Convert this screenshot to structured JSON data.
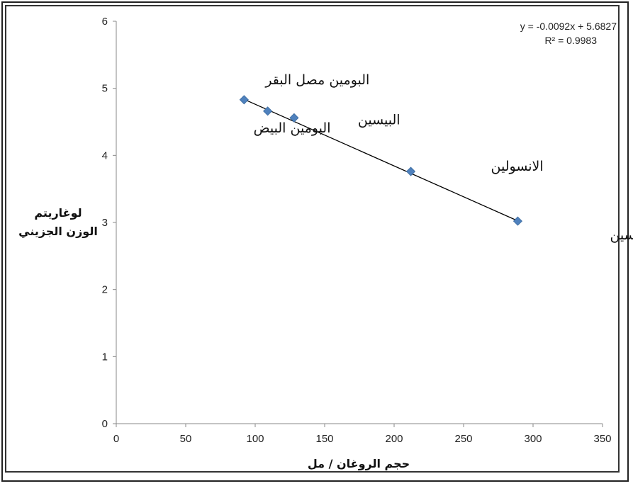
{
  "chart_data": {
    "type": "scatter",
    "xlim": [
      0,
      350
    ],
    "ylim": [
      0,
      6
    ],
    "x_ticks": [
      0,
      50,
      100,
      150,
      200,
      250,
      300,
      350
    ],
    "y_ticks": [
      0,
      1,
      2,
      3,
      4,
      5,
      6
    ],
    "grid": false,
    "xlabel": "حجم الروغان / مل",
    "ylabel_lines": [
      "لوغاريتم",
      "الوزن الجزيني"
    ],
    "series": [
      {
        "x": [
          92,
          109,
          128,
          212,
          289
        ],
        "y": [
          4.83,
          4.66,
          4.56,
          3.76,
          3.02
        ],
        "labels": [
          "البومين مصل البقر",
          "البومين البيض",
          "البيسين",
          "الانسولين",
          "الاوكسيتوسين"
        ],
        "color": "#4f81bd"
      }
    ],
    "trendline": {
      "slope": -0.0092,
      "intercept": 5.6827,
      "x_range": [
        92,
        289
      ],
      "equation": "y = -0.0092x + 5.6827",
      "r_squared": "R² = 0.9983",
      "color": "#000000"
    }
  }
}
